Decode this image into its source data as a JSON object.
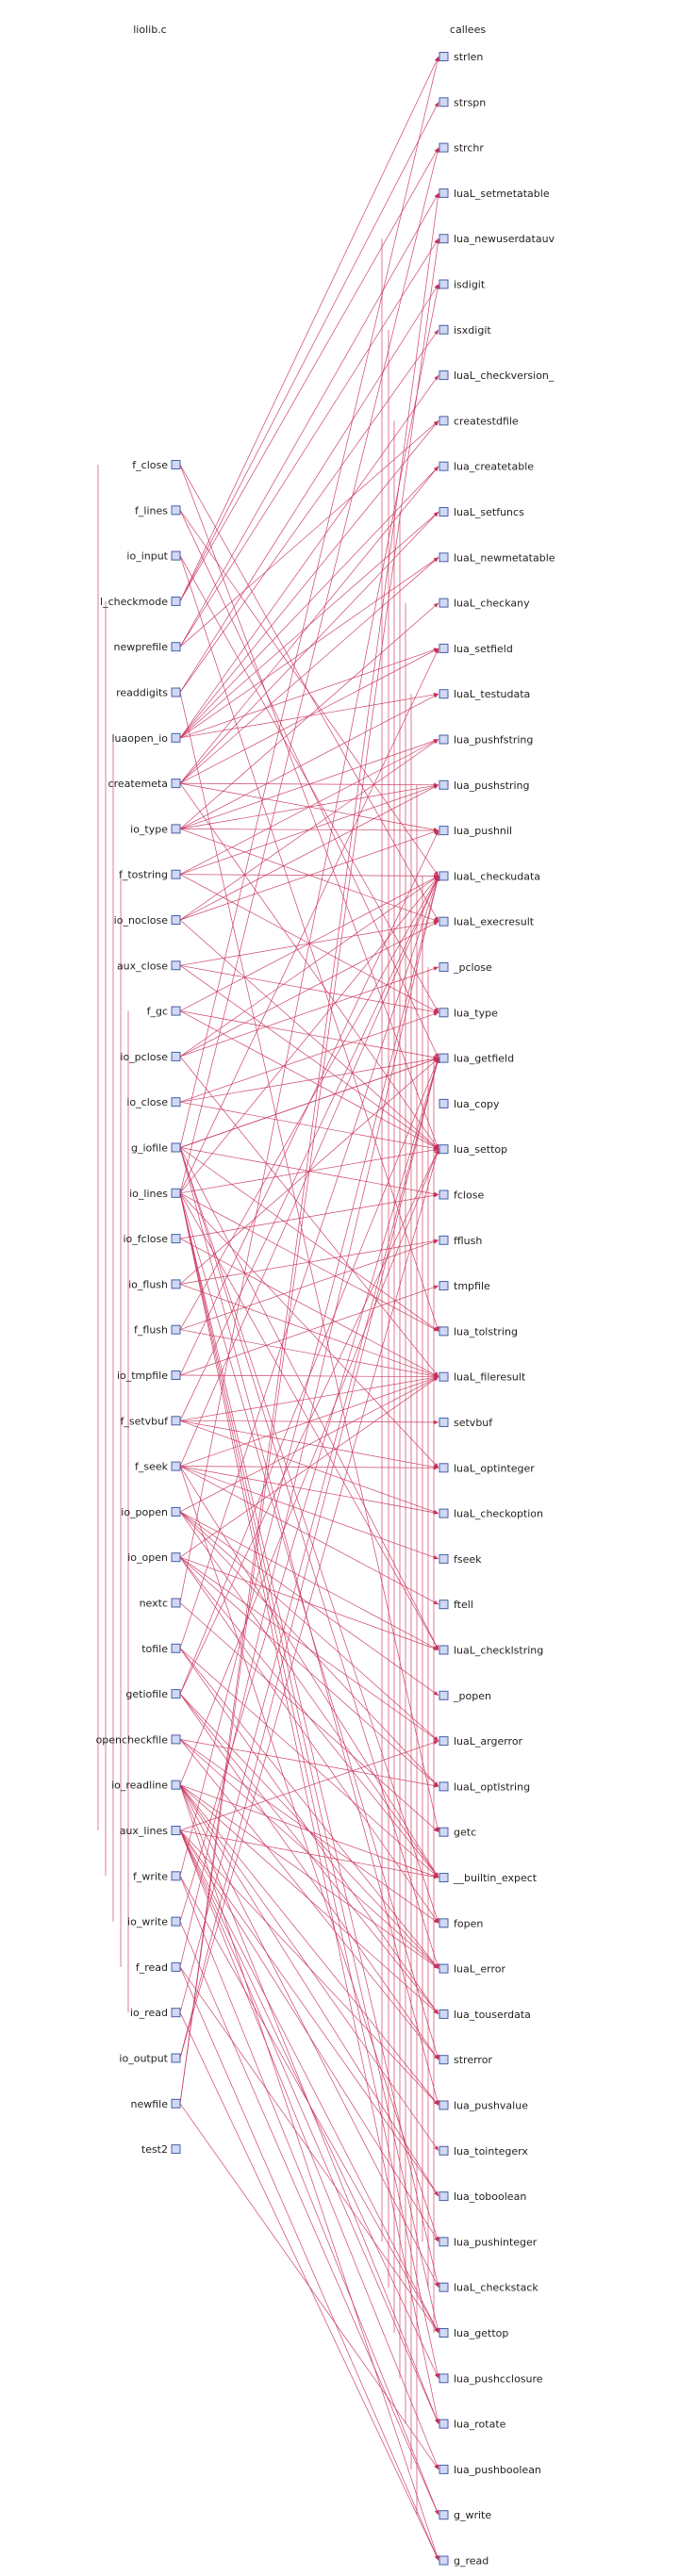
{
  "header": {
    "left_title": "liolib.c",
    "right_title": "callees"
  },
  "colors": {
    "edge": "#c8305a",
    "node_fill": "#cfd8f4",
    "node_stroke": "#4a5fa8",
    "text": "#222222"
  },
  "callers": [
    {
      "label": "f_close"
    },
    {
      "label": "f_lines"
    },
    {
      "label": "io_input"
    },
    {
      "label": "l_checkmode"
    },
    {
      "label": "newprefile"
    },
    {
      "label": "readdigits"
    },
    {
      "label": "luaopen_io"
    },
    {
      "label": "createmeta"
    },
    {
      "label": "io_type"
    },
    {
      "label": "f_tostring"
    },
    {
      "label": "io_noclose"
    },
    {
      "label": "aux_close"
    },
    {
      "label": "f_gc"
    },
    {
      "label": "io_pclose"
    },
    {
      "label": "io_close"
    },
    {
      "label": "g_iofile"
    },
    {
      "label": "io_lines"
    },
    {
      "label": "io_fclose"
    },
    {
      "label": "io_flush"
    },
    {
      "label": "f_flush"
    },
    {
      "label": "io_tmpfile"
    },
    {
      "label": "f_setvbuf"
    },
    {
      "label": "f_seek"
    },
    {
      "label": "io_popen"
    },
    {
      "label": "io_open"
    },
    {
      "label": "nextc"
    },
    {
      "label": "tofile"
    },
    {
      "label": "getiofile"
    },
    {
      "label": "opencheckfile"
    },
    {
      "label": "io_readline"
    },
    {
      "label": "aux_lines"
    },
    {
      "label": "f_write"
    },
    {
      "label": "io_write"
    },
    {
      "label": "f_read"
    },
    {
      "label": "io_read"
    },
    {
      "label": "io_output"
    },
    {
      "label": "newfile"
    },
    {
      "label": "test2"
    }
  ],
  "callees": [
    {
      "label": "strlen"
    },
    {
      "label": "strspn"
    },
    {
      "label": "strchr"
    },
    {
      "label": "luaL_setmetatable"
    },
    {
      "label": "lua_newuserdatauv"
    },
    {
      "label": "isdigit"
    },
    {
      "label": "isxdigit"
    },
    {
      "label": "luaL_checkversion_"
    },
    {
      "label": "createstdfile"
    },
    {
      "label": "lua_createtable"
    },
    {
      "label": "luaL_setfuncs"
    },
    {
      "label": "luaL_newmetatable"
    },
    {
      "label": "luaL_checkany"
    },
    {
      "label": "lua_setfield"
    },
    {
      "label": "luaL_testudata"
    },
    {
      "label": "lua_pushfstring"
    },
    {
      "label": "lua_pushstring"
    },
    {
      "label": "lua_pushnil"
    },
    {
      "label": "luaL_checkudata"
    },
    {
      "label": "luaL_execresult"
    },
    {
      "label": "_pclose"
    },
    {
      "label": "lua_type"
    },
    {
      "label": "lua_getfield"
    },
    {
      "label": "lua_copy"
    },
    {
      "label": "lua_settop"
    },
    {
      "label": "fclose"
    },
    {
      "label": "fflush"
    },
    {
      "label": "tmpfile"
    },
    {
      "label": "lua_tolstring"
    },
    {
      "label": "luaL_fileresult"
    },
    {
      "label": "setvbuf"
    },
    {
      "label": "luaL_optinteger"
    },
    {
      "label": "luaL_checkoption"
    },
    {
      "label": "fseek"
    },
    {
      "label": "ftell"
    },
    {
      "label": "luaL_checklstring"
    },
    {
      "label": "_popen"
    },
    {
      "label": "luaL_argerror"
    },
    {
      "label": "luaL_optlstring"
    },
    {
      "label": "getc"
    },
    {
      "label": "__builtin_expect"
    },
    {
      "label": "fopen"
    },
    {
      "label": "luaL_error"
    },
    {
      "label": "lua_touserdata"
    },
    {
      "label": "strerror"
    },
    {
      "label": "lua_pushvalue"
    },
    {
      "label": "lua_tointegerx"
    },
    {
      "label": "lua_toboolean"
    },
    {
      "label": "lua_pushinteger"
    },
    {
      "label": "luaL_checkstack"
    },
    {
      "label": "lua_gettop"
    },
    {
      "label": "lua_pushcclosure"
    },
    {
      "label": "lua_rotate"
    },
    {
      "label": "lua_pushboolean"
    },
    {
      "label": "g_write"
    },
    {
      "label": "g_read"
    }
  ],
  "edges": [
    [
      0,
      19
    ],
    [
      0,
      24
    ],
    [
      1,
      18
    ],
    [
      1,
      22
    ],
    [
      2,
      21
    ],
    [
      2,
      28
    ],
    [
      3,
      0
    ],
    [
      3,
      1
    ],
    [
      3,
      2
    ],
    [
      4,
      3
    ],
    [
      4,
      4
    ],
    [
      4,
      8
    ],
    [
      5,
      5
    ],
    [
      5,
      6
    ],
    [
      5,
      39
    ],
    [
      6,
      7
    ],
    [
      6,
      8
    ],
    [
      6,
      9
    ],
    [
      6,
      10
    ],
    [
      6,
      11
    ],
    [
      6,
      13
    ],
    [
      6,
      14
    ],
    [
      7,
      9
    ],
    [
      7,
      10
    ],
    [
      7,
      11
    ],
    [
      7,
      13
    ],
    [
      7,
      16
    ],
    [
      7,
      17
    ],
    [
      7,
      24
    ],
    [
      8,
      12
    ],
    [
      8,
      14
    ],
    [
      8,
      15
    ],
    [
      8,
      16
    ],
    [
      8,
      17
    ],
    [
      8,
      19
    ],
    [
      9,
      15
    ],
    [
      9,
      16
    ],
    [
      9,
      18
    ],
    [
      9,
      21
    ],
    [
      10,
      15
    ],
    [
      10,
      16
    ],
    [
      10,
      17
    ],
    [
      10,
      24
    ],
    [
      11,
      19
    ],
    [
      11,
      21
    ],
    [
      11,
      24
    ],
    [
      12,
      18
    ],
    [
      12,
      22
    ],
    [
      12,
      24
    ],
    [
      13,
      18
    ],
    [
      13,
      20
    ],
    [
      13,
      19
    ],
    [
      13,
      29
    ],
    [
      14,
      21
    ],
    [
      14,
      22
    ],
    [
      14,
      24
    ],
    [
      15,
      22
    ],
    [
      15,
      25
    ],
    [
      15,
      28
    ],
    [
      15,
      35
    ],
    [
      15,
      41
    ],
    [
      15,
      42
    ],
    [
      15,
      45
    ],
    [
      15,
      22
    ],
    [
      16,
      18
    ],
    [
      16,
      24
    ],
    [
      16,
      28
    ],
    [
      16,
      31
    ],
    [
      16,
      35
    ],
    [
      16,
      44
    ],
    [
      16,
      49
    ],
    [
      16,
      50
    ],
    [
      16,
      51
    ],
    [
      16,
      52
    ],
    [
      16,
      13
    ],
    [
      17,
      25
    ],
    [
      17,
      29
    ],
    [
      18,
      26
    ],
    [
      18,
      29
    ],
    [
      18,
      22
    ],
    [
      19,
      26
    ],
    [
      19,
      29
    ],
    [
      19,
      18
    ],
    [
      20,
      27
    ],
    [
      20,
      29
    ],
    [
      20,
      17
    ],
    [
      21,
      30
    ],
    [
      21,
      29
    ],
    [
      21,
      31
    ],
    [
      21,
      32
    ],
    [
      21,
      18
    ],
    [
      22,
      31
    ],
    [
      22,
      32
    ],
    [
      22,
      33
    ],
    [
      22,
      34
    ],
    [
      22,
      29
    ],
    [
      22,
      40
    ],
    [
      22,
      48
    ],
    [
      22,
      18
    ],
    [
      23,
      35
    ],
    [
      23,
      36
    ],
    [
      23,
      38
    ],
    [
      23,
      37
    ],
    [
      23,
      40
    ],
    [
      23,
      29
    ],
    [
      24,
      35
    ],
    [
      24,
      37
    ],
    [
      24,
      38
    ],
    [
      24,
      41
    ],
    [
      24,
      40
    ],
    [
      24,
      29
    ],
    [
      25,
      39
    ],
    [
      25,
      5
    ],
    [
      26,
      43
    ],
    [
      26,
      40
    ],
    [
      26,
      42
    ],
    [
      26,
      18
    ],
    [
      27,
      22
    ],
    [
      27,
      24
    ],
    [
      27,
      42
    ],
    [
      27,
      43
    ],
    [
      27,
      44
    ],
    [
      28,
      41
    ],
    [
      28,
      42
    ],
    [
      28,
      44
    ],
    [
      28,
      38
    ],
    [
      29,
      43
    ],
    [
      29,
      42
    ],
    [
      29,
      46
    ],
    [
      29,
      45
    ],
    [
      29,
      47
    ],
    [
      29,
      49
    ],
    [
      29,
      55
    ],
    [
      29,
      24
    ],
    [
      29,
      40
    ],
    [
      29,
      52
    ],
    [
      30,
      48
    ],
    [
      30,
      45
    ],
    [
      30,
      51
    ],
    [
      30,
      47
    ],
    [
      30,
      53
    ],
    [
      30,
      40
    ],
    [
      30,
      50
    ],
    [
      30,
      37
    ],
    [
      30,
      52
    ],
    [
      31,
      54
    ],
    [
      31,
      18
    ],
    [
      31,
      50
    ],
    [
      32,
      54
    ],
    [
      32,
      22
    ],
    [
      33,
      55
    ],
    [
      33,
      18
    ],
    [
      33,
      50
    ],
    [
      34,
      55
    ],
    [
      34,
      22
    ],
    [
      35,
      22
    ],
    [
      35,
      24
    ],
    [
      36,
      4
    ],
    [
      36,
      3
    ],
    [
      36,
      53
    ],
    [
      15,
      0
    ],
    [
      16,
      2
    ]
  ]
}
